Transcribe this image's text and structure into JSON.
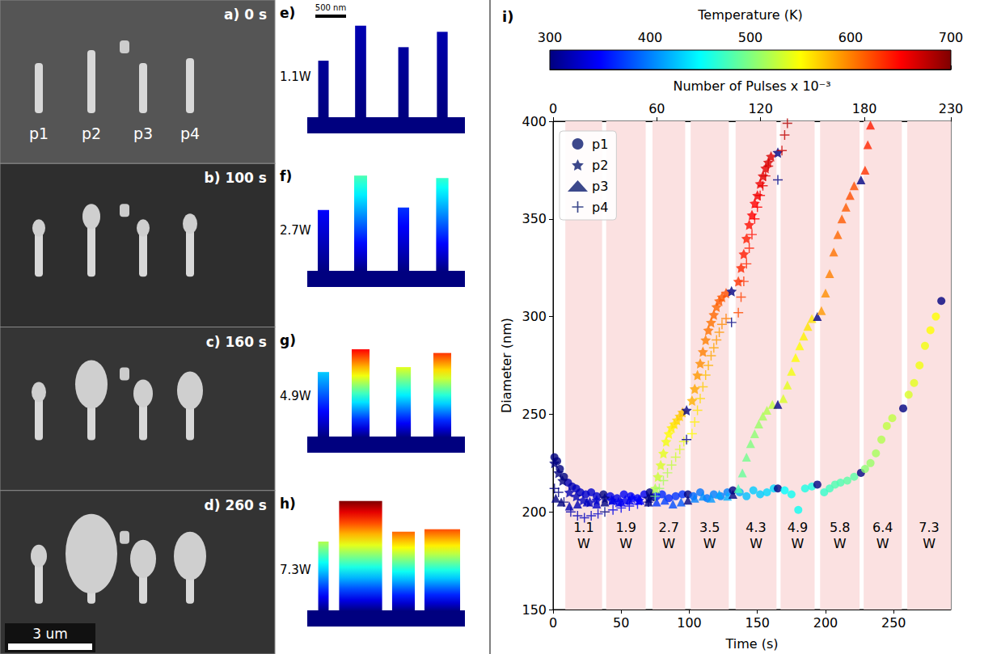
{
  "chart_data": {
    "type": "scatter",
    "panel": "i)",
    "x_label": "Time (s)",
    "y_label": "Diameter (nm)",
    "xlim": [
      0,
      292
    ],
    "xticks": [
      0,
      50,
      100,
      150,
      200,
      250
    ],
    "ylim": [
      150,
      400
    ],
    "yticks": [
      150,
      200,
      250,
      300,
      350,
      400
    ],
    "x2_label": "Number of Pulses x 10⁻³",
    "x2lim": [
      0,
      230
    ],
    "x2ticks": [
      0,
      60,
      120,
      180,
      230
    ],
    "colorbar": {
      "label": "Temperature (K)",
      "range": [
        300,
        700
      ],
      "ticks": [
        300,
        400,
        500,
        600,
        700
      ]
    },
    "legend": "upper left",
    "grid": false,
    "bands": [
      {
        "start": 9,
        "end": 36,
        "label": "1.1 W"
      },
      {
        "start": 39,
        "end": 68,
        "label": "1.9 W"
      },
      {
        "start": 73,
        "end": 97,
        "label": "2.7 W"
      },
      {
        "start": 101,
        "end": 129,
        "label": "3.5 W"
      },
      {
        "start": 134,
        "end": 164,
        "label": "4.3 W"
      },
      {
        "start": 167,
        "end": 192,
        "label": "4.9 W"
      },
      {
        "start": 196,
        "end": 225,
        "label": "5.8 W"
      },
      {
        "start": 228,
        "end": 256,
        "label": "6.4 W"
      },
      {
        "start": 260,
        "end": 292,
        "label": "7.3 W"
      }
    ],
    "series": [
      {
        "name": "p1",
        "marker": "circle",
        "color": "#0b1a6e",
        "x": [
          1,
          3,
          5,
          8,
          11,
          14,
          17,
          20,
          24,
          28,
          32,
          37,
          42,
          47,
          52,
          57,
          62,
          67,
          71,
          76,
          80,
          85,
          90,
          95,
          99,
          103,
          108,
          113,
          118,
          123,
          128,
          132,
          137,
          142,
          147,
          152,
          157,
          162,
          165,
          170,
          175,
          180,
          185,
          190,
          194,
          199,
          203,
          207,
          211,
          216,
          221,
          226,
          229,
          233,
          237,
          241,
          245,
          249,
          257,
          261,
          265,
          269,
          273,
          277,
          281,
          285
        ],
        "values": [
          228,
          226,
          222,
          218,
          215,
          213,
          212,
          210,
          209,
          210,
          208,
          209,
          208,
          207,
          209,
          208,
          207,
          209,
          210,
          208,
          209,
          207,
          208,
          209,
          209,
          208,
          210,
          207,
          209,
          208,
          210,
          211,
          210,
          208,
          211,
          209,
          210,
          212,
          212,
          211,
          209,
          201,
          212,
          213,
          214,
          210,
          212,
          214,
          215,
          216,
          218,
          220,
          222,
          225,
          230,
          237,
          244,
          248,
          253,
          260,
          266,
          275,
          285,
          293,
          300,
          308
        ],
        "temperature": [
          300,
          300,
          300,
          300,
          320,
          320,
          325,
          325,
          330,
          330,
          330,
          300,
          340,
          340,
          345,
          345,
          345,
          345,
          300,
          360,
          365,
          365,
          370,
          370,
          300,
          390,
          395,
          395,
          400,
          400,
          400,
          300,
          420,
          425,
          430,
          430,
          435,
          435,
          300,
          450,
          455,
          455,
          460,
          460,
          300,
          470,
          475,
          480,
          480,
          485,
          485,
          300,
          505,
          510,
          515,
          520,
          525,
          525,
          300,
          535,
          540,
          545,
          545,
          550,
          550,
          300
        ]
      },
      {
        "name": "p2",
        "marker": "star",
        "color": "#0b1a6e",
        "x": [
          1,
          4,
          7,
          12,
          17,
          22,
          27,
          32,
          38,
          43,
          48,
          53,
          58,
          63,
          70,
          72,
          75,
          77,
          79,
          81,
          83,
          85,
          87,
          89,
          91,
          93,
          95,
          98,
          102,
          104,
          106,
          108,
          110,
          112,
          114,
          116,
          118,
          120,
          122,
          124,
          127,
          131,
          136,
          138,
          140,
          142,
          144,
          146,
          148,
          150,
          152,
          154,
          156,
          158,
          160,
          165
        ],
        "values": [
          225,
          220,
          216,
          210,
          208,
          206,
          205,
          206,
          207,
          206,
          205,
          206,
          207,
          206,
          207,
          208,
          212,
          218,
          224,
          230,
          236,
          240,
          243,
          245,
          247,
          249,
          251,
          252,
          257,
          263,
          270,
          276,
          282,
          288,
          293,
          297,
          301,
          305,
          308,
          310,
          312,
          313,
          318,
          325,
          332,
          340,
          347,
          352,
          358,
          362,
          368,
          372,
          376,
          379,
          382,
          384
        ],
        "temperature": [
          300,
          300,
          300,
          320,
          320,
          325,
          325,
          330,
          300,
          340,
          345,
          345,
          350,
          350,
          300,
          300,
          520,
          530,
          535,
          540,
          545,
          550,
          555,
          560,
          565,
          570,
          575,
          300,
          580,
          585,
          590,
          595,
          600,
          600,
          605,
          605,
          610,
          610,
          615,
          615,
          620,
          300,
          630,
          635,
          640,
          640,
          645,
          650,
          650,
          655,
          655,
          660,
          660,
          665,
          665,
          300
        ]
      },
      {
        "name": "p3",
        "marker": "triangle",
        "color": "#0b1a6e",
        "x": [
          2,
          6,
          12,
          18,
          25,
          32,
          38,
          44,
          50,
          56,
          64,
          70,
          76,
          82,
          88,
          94,
          99,
          104,
          110,
          116,
          122,
          128,
          132,
          136,
          139,
          142,
          145,
          148,
          151,
          154,
          157,
          161,
          165,
          169,
          172,
          175,
          178,
          181,
          184,
          187,
          190,
          194,
          197,
          200,
          203,
          206,
          209,
          212,
          215,
          218,
          221,
          226,
          229,
          231,
          233
        ],
        "values": [
          207,
          205,
          203,
          204,
          205,
          204,
          205,
          206,
          205,
          206,
          206,
          205,
          205,
          206,
          204,
          205,
          206,
          207,
          208,
          207,
          209,
          208,
          209,
          212,
          220,
          228,
          235,
          240,
          245,
          249,
          252,
          255,
          255,
          258,
          265,
          272,
          279,
          285,
          290,
          295,
          299,
          300,
          303,
          312,
          322,
          333,
          342,
          350,
          356,
          362,
          367,
          370,
          375,
          388,
          398
        ],
        "temperature": [
          300,
          300,
          320,
          320,
          325,
          330,
          300,
          340,
          345,
          345,
          350,
          300,
          370,
          375,
          380,
          385,
          300,
          400,
          405,
          410,
          415,
          420,
          300,
          480,
          490,
          495,
          500,
          505,
          510,
          515,
          520,
          525,
          300,
          535,
          540,
          545,
          550,
          550,
          555,
          560,
          560,
          300,
          590,
          595,
          600,
          605,
          610,
          615,
          615,
          620,
          620,
          300,
          630,
          635,
          640
        ]
      },
      {
        "name": "p4",
        "marker": "plus",
        "color": "#0b1a6e",
        "x": [
          1,
          4,
          8,
          13,
          18,
          23,
          28,
          33,
          38,
          44,
          50,
          56,
          62,
          70,
          72,
          75,
          78,
          81,
          84,
          87,
          90,
          93,
          96,
          98,
          102,
          104,
          106,
          108,
          110,
          112,
          114,
          116,
          118,
          120,
          122,
          124,
          127,
          131,
          136,
          138,
          140,
          142,
          144,
          146,
          148,
          150,
          152,
          154,
          156,
          158,
          165,
          168,
          170,
          172
        ],
        "values": [
          212,
          210,
          205,
          200,
          198,
          197,
          198,
          199,
          200,
          201,
          202,
          203,
          204,
          205,
          206,
          208,
          212,
          216,
          220,
          224,
          228,
          232,
          236,
          237,
          240,
          246,
          252,
          258,
          264,
          270,
          275,
          280,
          284,
          288,
          292,
          296,
          299,
          297,
          302,
          310,
          318,
          327,
          335,
          342,
          350,
          356,
          362,
          367,
          372,
          377,
          370,
          385,
          393,
          399
        ],
        "temperature": [
          300,
          300,
          300,
          320,
          320,
          325,
          325,
          330,
          300,
          340,
          345,
          345,
          350,
          300,
          300,
          500,
          510,
          515,
          520,
          525,
          530,
          535,
          540,
          300,
          550,
          555,
          560,
          565,
          570,
          575,
          580,
          585,
          585,
          590,
          590,
          595,
          600,
          300,
          620,
          625,
          630,
          635,
          640,
          645,
          650,
          650,
          655,
          660,
          665,
          665,
          300,
          670,
          675,
          680
        ]
      }
    ]
  },
  "sem_images": {
    "pillar_labels": [
      "p1",
      "p2",
      "p3",
      "p4"
    ],
    "scale_bar": "3 um",
    "panels": [
      {
        "label": "a) 0 s"
      },
      {
        "label": "b) 100 s"
      },
      {
        "label": "c) 160 s"
      },
      {
        "label": "d) 260 s"
      }
    ]
  },
  "simulations": {
    "scale_bar": "500 nm",
    "panels": [
      {
        "label": "e)",
        "power": "1.1W",
        "pillars": [
          {
            "height": 920,
            "width": 170,
            "tip_temperature": 310
          },
          {
            "height": 1490,
            "width": 180,
            "tip_temperature": 320
          },
          {
            "height": 1140,
            "width": 170,
            "tip_temperature": 312
          },
          {
            "height": 1390,
            "width": 175,
            "tip_temperature": 318
          }
        ]
      },
      {
        "label": "f)",
        "power": "2.7W",
        "pillars": [
          {
            "height": 990,
            "width": 185,
            "tip_temperature": 350
          },
          {
            "height": 1550,
            "width": 210,
            "tip_temperature": 480
          },
          {
            "height": 1030,
            "width": 185,
            "tip_temperature": 370
          },
          {
            "height": 1510,
            "width": 200,
            "tip_temperature": 470
          }
        ]
      },
      {
        "label": "g)",
        "power": "4.9W",
        "pillars": [
          {
            "height": 1050,
            "width": 185,
            "tip_temperature": 430
          },
          {
            "height": 1420,
            "width": 290,
            "tip_temperature": 650
          },
          {
            "height": 1130,
            "width": 240,
            "tip_temperature": 540
          },
          {
            "height": 1360,
            "width": 290,
            "tip_temperature": 630
          }
        ]
      },
      {
        "label": "h)",
        "power": "7.3W",
        "pillars": [
          {
            "height": 1120,
            "width": 170,
            "tip_temperature": 520
          },
          {
            "height": 1780,
            "width": 700,
            "tip_temperature": 700
          },
          {
            "height": 1280,
            "width": 370,
            "tip_temperature": 610
          },
          {
            "height": 1320,
            "width": 580,
            "tip_temperature": 620
          }
        ]
      }
    ]
  }
}
